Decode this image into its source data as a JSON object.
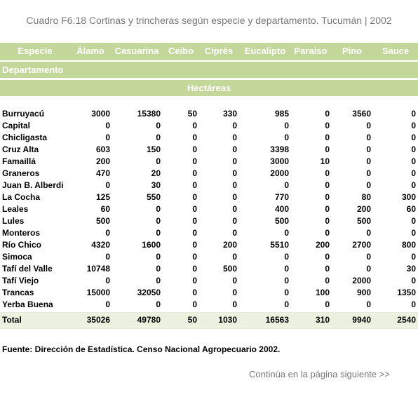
{
  "title": "Cuadro F6.18 Cortinas y trincheras según especie y departamento. Tucumán | 2002",
  "table": {
    "header": [
      "Especie",
      "Álamo",
      "Casuarina",
      "Ceibo",
      "Ciprés",
      "Eucalipto",
      "Paraiso",
      "Pino",
      "Sauce"
    ],
    "subheader": "Departamento",
    "unit": "Hectáreas",
    "rows": [
      [
        "Burruyacú",
        3000,
        15380,
        50,
        330,
        985,
        0,
        3560,
        0
      ],
      [
        "Capital",
        0,
        0,
        0,
        0,
        0,
        0,
        0,
        0
      ],
      [
        "Chicligasta",
        0,
        0,
        0,
        0,
        0,
        0,
        0,
        0
      ],
      [
        "Cruz Alta",
        603,
        150,
        0,
        0,
        3398,
        0,
        0,
        0
      ],
      [
        "Famaillá",
        200,
        0,
        0,
        0,
        3000,
        10,
        0,
        0
      ],
      [
        "Graneros",
        470,
        20,
        0,
        0,
        2000,
        0,
        0,
        0
      ],
      [
        "Juan B. Alberdi",
        0,
        30,
        0,
        0,
        0,
        0,
        0,
        0
      ],
      [
        "La Cocha",
        125,
        550,
        0,
        0,
        770,
        0,
        80,
        300
      ],
      [
        "Leales",
        60,
        0,
        0,
        0,
        400,
        0,
        200,
        60
      ],
      [
        "Lules",
        500,
        0,
        0,
        0,
        500,
        0,
        500,
        0
      ],
      [
        "Monteros",
        0,
        0,
        0,
        0,
        0,
        0,
        0,
        0
      ],
      [
        "Río Chico",
        4320,
        1600,
        0,
        200,
        5510,
        200,
        2700,
        800
      ],
      [
        "Simoca",
        0,
        0,
        0,
        0,
        0,
        0,
        0,
        0
      ],
      [
        "Tafí del Valle",
        10748,
        0,
        0,
        500,
        0,
        0,
        0,
        30
      ],
      [
        "Tafí Viejo",
        0,
        0,
        0,
        0,
        0,
        0,
        2000,
        0
      ],
      [
        "Trancas",
        15000,
        32050,
        0,
        0,
        0,
        100,
        900,
        1350
      ],
      [
        "Yerba Buena",
        0,
        0,
        0,
        0,
        0,
        0,
        0,
        0
      ]
    ],
    "total": [
      "Total",
      35026,
      49780,
      50,
      1030,
      16563,
      310,
      9940,
      2540
    ]
  },
  "source": "Fuente: Dirección de Estadística. Censo Nacional Agropecuario 2002.",
  "continue_note": "Continúa en la página siguiente >>"
}
